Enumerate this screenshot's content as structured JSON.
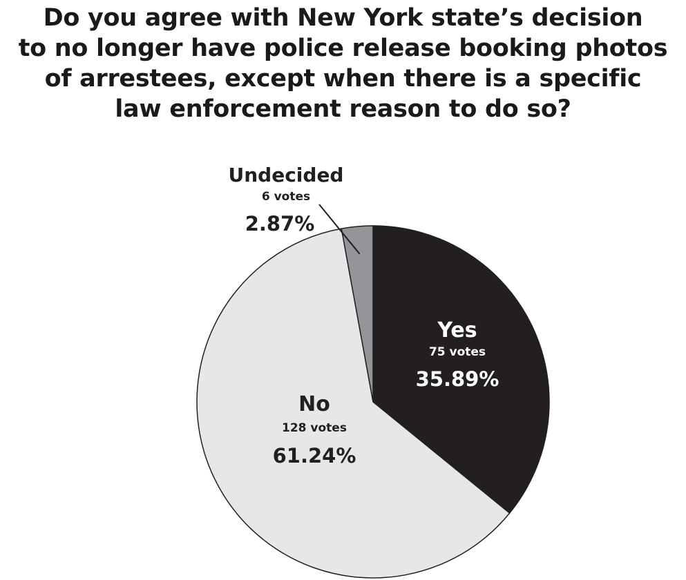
{
  "chart_data": {
    "type": "pie",
    "title_lines": [
      "Do you agree with New York state’s decision",
      "to no longer have police release booking photos",
      "of arrestees, except when there is a specific",
      "law enforcement reason to do so?"
    ],
    "slices": [
      {
        "label": "Yes",
        "votes_text": "75 votes",
        "votes": 75,
        "percent_text": "35.89%",
        "percent": 35.89,
        "color": "#231f20"
      },
      {
        "label": "No",
        "votes_text": "128 votes",
        "votes": 128,
        "percent_text": "61.24%",
        "percent": 61.24,
        "color": "#e6e7e8"
      },
      {
        "label": "Undecided",
        "votes_text": "6 votes",
        "votes": 6,
        "percent_text": "2.87%",
        "percent": 2.87,
        "color": "#939598"
      }
    ]
  }
}
